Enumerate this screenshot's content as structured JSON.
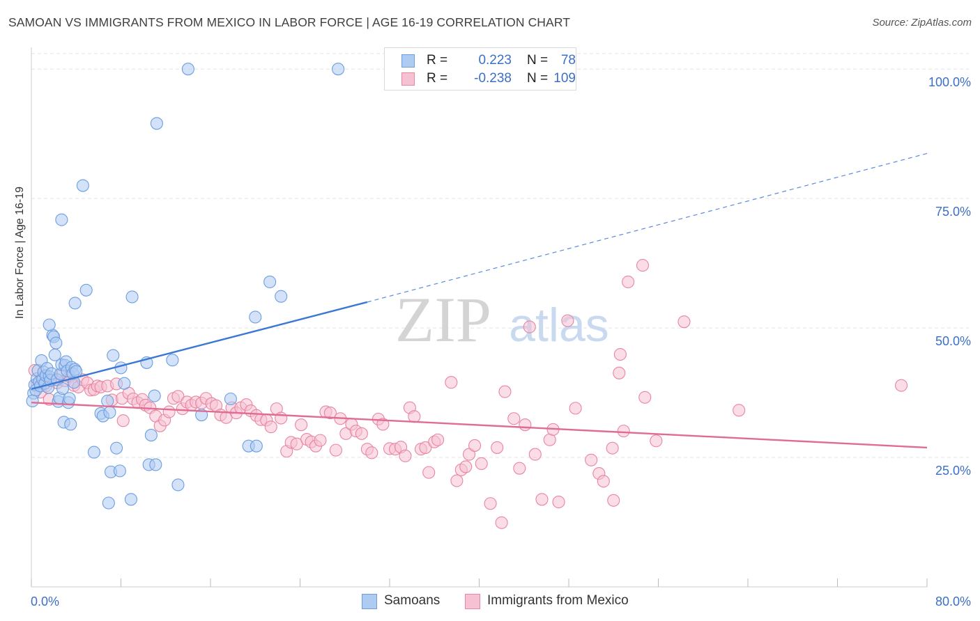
{
  "title": "SAMOAN VS IMMIGRANTS FROM MEXICO IN LABOR FORCE | AGE 16-19 CORRELATION CHART",
  "source": "Source: ZipAtlas.com",
  "watermark": {
    "zip": "ZIP",
    "atlas": "atlas"
  },
  "legend": {
    "samoans": {
      "r_label": "R =",
      "r_value": "0.223",
      "n_label": "N =",
      "n_value": "78"
    },
    "mexico": {
      "r_label": "R =",
      "r_value": "-0.238",
      "n_label": "N =",
      "n_value": "109"
    }
  },
  "colors": {
    "samoan_fill": "#aecbf2",
    "samoan_stroke": "#6b9ee0",
    "samoan_line": "#3a78d4",
    "mexico_fill": "#f6c1d3",
    "mexico_stroke": "#e8859f",
    "mexico_line": "#e06b93",
    "accent_text": "#3b6fc5"
  },
  "chart_data": {
    "type": "scatter",
    "title": "SAMOAN VS IMMIGRANTS FROM MEXICO IN LABOR FORCE | AGE 16-19 CORRELATION CHART",
    "xlabel": "",
    "ylabel": "In Labor Force | Age 16-19",
    "xlim": [
      0,
      80
    ],
    "ylim": [
      0,
      105
    ],
    "x_tick_labels": [
      "0.0%",
      "80.0%"
    ],
    "y_ticks": [
      25,
      50,
      75,
      100
    ],
    "y_tick_labels": [
      "25.0%",
      "50.0%",
      "75.0%",
      "100.0%"
    ],
    "legend_position": "bottom-center",
    "series": [
      {
        "name": "Samoans",
        "r": 0.223,
        "n": 78,
        "trend": {
          "x0": 0,
          "y0": 38.2,
          "x1": 30,
          "y1": 55.0,
          "dashed_to_x": 80,
          "dashed_to_y": 83.7
        },
        "points": [
          [
            0.2,
            37.4
          ],
          [
            0.3,
            39.0
          ],
          [
            0.4,
            38.0
          ],
          [
            0.5,
            40.2
          ],
          [
            0.6,
            41.8
          ],
          [
            0.7,
            39.6
          ],
          [
            0.8,
            38.8
          ],
          [
            0.9,
            43.7
          ],
          [
            1.0,
            40.1
          ],
          [
            1.1,
            41.5
          ],
          [
            1.2,
            39.3
          ],
          [
            1.3,
            40.8
          ],
          [
            1.4,
            42.2
          ],
          [
            1.5,
            38.5
          ],
          [
            1.6,
            40.6
          ],
          [
            1.7,
            39.9
          ],
          [
            1.8,
            41.2
          ],
          [
            1.9,
            48.6
          ],
          [
            2.0,
            48.3
          ],
          [
            2.1,
            44.8
          ],
          [
            2.2,
            47.1
          ],
          [
            2.3,
            40.0
          ],
          [
            2.4,
            35.8
          ],
          [
            2.5,
            36.5
          ],
          [
            2.6,
            41.1
          ],
          [
            2.7,
            42.9
          ],
          [
            2.8,
            38.3
          ],
          [
            2.9,
            31.8
          ],
          [
            3.0,
            42.8
          ],
          [
            3.1,
            43.5
          ],
          [
            3.2,
            41.7
          ],
          [
            3.3,
            35.6
          ],
          [
            3.4,
            36.4
          ],
          [
            3.5,
            31.4
          ],
          [
            3.6,
            42.4
          ],
          [
            3.7,
            41.2
          ],
          [
            3.8,
            39.5
          ],
          [
            3.9,
            42.0
          ],
          [
            4.0,
            41.6
          ],
          [
            1.6,
            50.6
          ],
          [
            2.7,
            70.9
          ],
          [
            4.6,
            77.5
          ],
          [
            4.9,
            57.3
          ],
          [
            3.9,
            54.8
          ],
          [
            5.6,
            26.0
          ],
          [
            6.2,
            33.5
          ],
          [
            6.4,
            33.0
          ],
          [
            6.8,
            35.9
          ],
          [
            7.0,
            33.7
          ],
          [
            6.9,
            16.2
          ],
          [
            7.1,
            22.2
          ],
          [
            7.6,
            26.8
          ],
          [
            7.9,
            22.4
          ],
          [
            8.0,
            42.3
          ],
          [
            8.3,
            39.3
          ],
          [
            7.3,
            44.7
          ],
          [
            8.9,
            16.9
          ],
          [
            9.0,
            56.0
          ],
          [
            10.3,
            43.3
          ],
          [
            10.5,
            23.6
          ],
          [
            10.7,
            29.3
          ],
          [
            11.1,
            23.6
          ],
          [
            11.0,
            36.9
          ],
          [
            11.2,
            89.5
          ],
          [
            12.6,
            43.8
          ],
          [
            13.1,
            19.7
          ],
          [
            14.0,
            100.0
          ],
          [
            15.2,
            33.2
          ],
          [
            17.8,
            36.3
          ],
          [
            19.4,
            27.2
          ],
          [
            20.1,
            27.2
          ],
          [
            20.0,
            52.1
          ],
          [
            21.3,
            58.9
          ],
          [
            22.3,
            56.1
          ],
          [
            27.4,
            100.0
          ],
          [
            0.1,
            35.9
          ]
        ]
      },
      {
        "name": "Immigrants from Mexico",
        "r": -0.238,
        "n": 109,
        "trend": {
          "x0": 0,
          "y0": 35.6,
          "x1": 80,
          "y1": 26.9
        },
        "points": [
          [
            0.3,
            41.8
          ],
          [
            0.5,
            39.2
          ],
          [
            0.8,
            37.6
          ],
          [
            1.0,
            40.5
          ],
          [
            1.3,
            38.8
          ],
          [
            1.6,
            36.2
          ],
          [
            2.0,
            40.0
          ],
          [
            2.3,
            39.4
          ],
          [
            2.7,
            41.0
          ],
          [
            3.0,
            39.8
          ],
          [
            3.4,
            40.6
          ],
          [
            3.8,
            38.9
          ],
          [
            4.2,
            38.6
          ],
          [
            4.6,
            40.0
          ],
          [
            5.0,
            39.4
          ],
          [
            5.3,
            38.0
          ],
          [
            5.6,
            38.1
          ],
          [
            5.9,
            38.8
          ],
          [
            6.2,
            38.6
          ],
          [
            6.8,
            38.8
          ],
          [
            7.2,
            36.1
          ],
          [
            7.6,
            39.2
          ],
          [
            8.1,
            36.4
          ],
          [
            8.2,
            32.1
          ],
          [
            8.7,
            37.4
          ],
          [
            9.1,
            36.3
          ],
          [
            9.5,
            35.6
          ],
          [
            9.9,
            36.2
          ],
          [
            10.2,
            35.1
          ],
          [
            10.6,
            34.6
          ],
          [
            11.1,
            33.0
          ],
          [
            11.5,
            31.1
          ],
          [
            11.9,
            32.2
          ],
          [
            12.3,
            33.8
          ],
          [
            12.7,
            36.4
          ],
          [
            13.1,
            36.8
          ],
          [
            13.5,
            34.4
          ],
          [
            13.9,
            35.7
          ],
          [
            14.3,
            35.1
          ],
          [
            14.7,
            35.7
          ],
          [
            15.2,
            35.5
          ],
          [
            15.6,
            36.4
          ],
          [
            16.1,
            35.4
          ],
          [
            16.5,
            35.0
          ],
          [
            16.9,
            33.2
          ],
          [
            17.4,
            32.7
          ],
          [
            17.9,
            34.6
          ],
          [
            18.3,
            33.6
          ],
          [
            18.7,
            34.6
          ],
          [
            19.2,
            35.2
          ],
          [
            19.6,
            34.0
          ],
          [
            20.1,
            33.1
          ],
          [
            20.5,
            32.3
          ],
          [
            21.0,
            32.2
          ],
          [
            21.4,
            30.9
          ],
          [
            21.9,
            34.4
          ],
          [
            22.3,
            32.6
          ],
          [
            22.8,
            26.2
          ],
          [
            23.2,
            27.9
          ],
          [
            23.7,
            27.6
          ],
          [
            24.1,
            31.3
          ],
          [
            24.6,
            28.5
          ],
          [
            25.0,
            28.0
          ],
          [
            25.4,
            27.2
          ],
          [
            25.8,
            28.3
          ],
          [
            26.3,
            33.8
          ],
          [
            26.7,
            33.6
          ],
          [
            27.2,
            26.4
          ],
          [
            27.6,
            32.5
          ],
          [
            28.1,
            29.6
          ],
          [
            28.6,
            31.4
          ],
          [
            29.0,
            30.1
          ],
          [
            29.5,
            29.6
          ],
          [
            30.0,
            26.6
          ],
          [
            30.4,
            25.9
          ],
          [
            31.0,
            32.4
          ],
          [
            31.4,
            31.4
          ],
          [
            32.0,
            26.7
          ],
          [
            32.5,
            26.6
          ],
          [
            33.0,
            27.0
          ],
          [
            33.4,
            25.3
          ],
          [
            33.8,
            34.6
          ],
          [
            34.2,
            32.9
          ],
          [
            34.8,
            26.6
          ],
          [
            35.2,
            26.9
          ],
          [
            35.5,
            22.1
          ],
          [
            36.0,
            28.0
          ],
          [
            36.3,
            28.4
          ],
          [
            37.5,
            39.5
          ],
          [
            38.0,
            20.5
          ],
          [
            38.4,
            22.6
          ],
          [
            38.8,
            23.2
          ],
          [
            39.1,
            25.6
          ],
          [
            39.6,
            27.3
          ],
          [
            40.2,
            23.8
          ],
          [
            41.0,
            16.1
          ],
          [
            41.6,
            26.9
          ],
          [
            42.0,
            12.4
          ],
          [
            42.3,
            37.7
          ],
          [
            43.1,
            32.5
          ],
          [
            43.6,
            22.9
          ],
          [
            44.1,
            31.3
          ],
          [
            44.5,
            50.2
          ],
          [
            45.0,
            25.6
          ],
          [
            45.6,
            16.9
          ],
          [
            46.3,
            28.4
          ],
          [
            46.6,
            30.4
          ],
          [
            47.1,
            16.4
          ],
          [
            47.9,
            51.4
          ],
          [
            48.6,
            34.5
          ],
          [
            50.0,
            24.5
          ],
          [
            50.7,
            21.9
          ],
          [
            51.1,
            20.4
          ],
          [
            51.9,
            26.8
          ],
          [
            52.5,
            41.3
          ],
          [
            52.9,
            30.1
          ],
          [
            52.0,
            16.7
          ],
          [
            52.6,
            44.9
          ],
          [
            53.3,
            58.9
          ],
          [
            54.6,
            62.1
          ],
          [
            54.8,
            36.6
          ],
          [
            55.8,
            28.2
          ],
          [
            58.3,
            51.2
          ],
          [
            63.2,
            34.1
          ],
          [
            77.7,
            38.9
          ]
        ]
      }
    ]
  }
}
